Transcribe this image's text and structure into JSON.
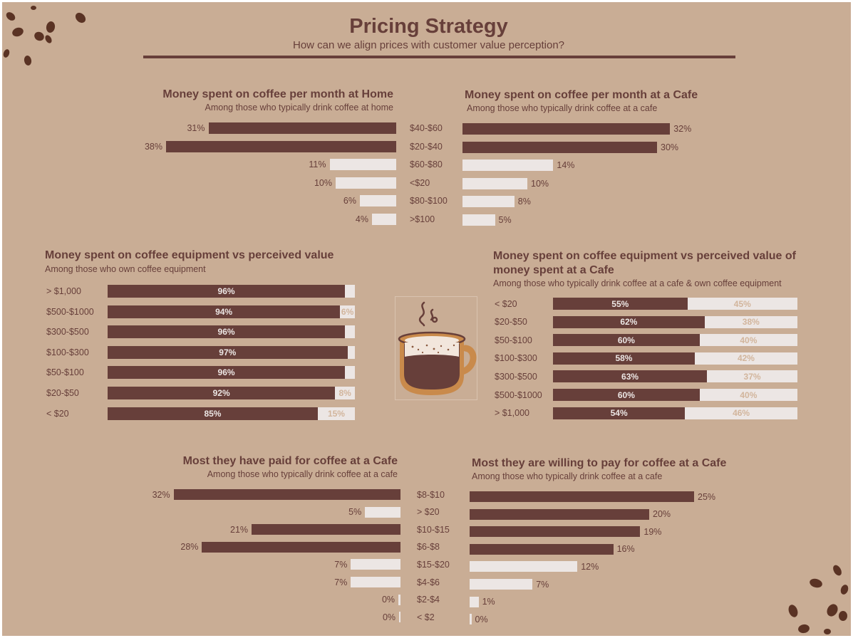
{
  "header": {
    "title": "Pricing Strategy",
    "subtitle": "How can we align prices with customer value perception?"
  },
  "icons": [
    "coffee-bean-icon",
    "coffee-cup-icon"
  ],
  "colors": {
    "background": "#c9ad95",
    "dark": "#673f3a",
    "light": "#ece6e4"
  },
  "chart_data": [
    {
      "id": "home",
      "type": "bar",
      "title": "Money spent on coffee per month at Home",
      "subtitle": "Among those who typically drink coffee at home",
      "categories": [
        "$40-$60",
        "$20-$40",
        "$60-$80",
        "<$20",
        "$80-$100",
        ">$100"
      ],
      "values": [
        31,
        38,
        11,
        10,
        6,
        4
      ],
      "labels": [
        "31%",
        "38%",
        "11%",
        "10%",
        "6%",
        "4%"
      ],
      "highlight": [
        true,
        true,
        false,
        false,
        false,
        false
      ]
    },
    {
      "id": "cafe",
      "type": "bar",
      "title": "Money spent on coffee per month at a Cafe",
      "subtitle": "Among those who typically drink coffee at a cafe",
      "categories": [
        "$40-$60",
        "$20-$40",
        "$60-$80",
        "<$20",
        "$80-$100",
        ">$100"
      ],
      "values": [
        32,
        30,
        14,
        10,
        8,
        5
      ],
      "labels": [
        "32%",
        "30%",
        "14%",
        "10%",
        "8%",
        "5%"
      ],
      "highlight": [
        true,
        true,
        false,
        false,
        false,
        false
      ]
    },
    {
      "id": "equip",
      "type": "bar",
      "stacked": true,
      "title": "Money spent on coffee equipment vs perceived value",
      "subtitle": "Among those who own coffee equipment",
      "categories": [
        "> $1,000",
        "$500-$1000",
        "$300-$500",
        "$100-$300",
        "$50-$100",
        "$20-$50",
        "< $20"
      ],
      "values": [
        96,
        94,
        96,
        97,
        96,
        92,
        85
      ],
      "labels": [
        "96%",
        "94%",
        "96%",
        "97%",
        "96%",
        "92%",
        "85%"
      ],
      "rest_labels": [
        "",
        "6%",
        "",
        "",
        "",
        "8%",
        "15%"
      ]
    },
    {
      "id": "equip_cafe",
      "type": "bar",
      "stacked": true,
      "title": "Money spent on coffee equipment vs perceived value of money spent at a Cafe",
      "title_lines": [
        "Money spent on coffee equipment vs perceived value of",
        "money spent at a Cafe"
      ],
      "subtitle": "Among those who typically drink coffee at a cafe & own coffee equipment",
      "categories": [
        "< $20",
        "$20-$50",
        "$50-$100",
        "$100-$300",
        "$300-$500",
        "$500-$1000",
        "> $1,000"
      ],
      "values": [
        55,
        62,
        60,
        58,
        63,
        60,
        54
      ],
      "labels": [
        "55%",
        "62%",
        "60%",
        "58%",
        "63%",
        "60%",
        "54%"
      ],
      "rest_labels": [
        "45%",
        "38%",
        "40%",
        "42%",
        "37%",
        "40%",
        "46%"
      ]
    },
    {
      "id": "paid",
      "type": "bar",
      "title": "Most they have paid for coffee at a Cafe",
      "subtitle": "Among those who typically drink coffee at a cafe",
      "categories": [
        "$8-$10",
        "> $20",
        "$10-$15",
        "$6-$8",
        "$15-$20",
        "$4-$6",
        "$2-$4",
        "< $2"
      ],
      "values": [
        32,
        5,
        21,
        28,
        7,
        7,
        0.3,
        0.2
      ],
      "labels": [
        "32%",
        "5%",
        "21%",
        "28%",
        "7%",
        "7%",
        "0%",
        "0%"
      ],
      "highlight": [
        true,
        false,
        true,
        true,
        false,
        false,
        false,
        false
      ]
    },
    {
      "id": "willing",
      "type": "bar",
      "title": "Most they are willing to pay for coffee at a Cafe",
      "subtitle": "Among those who typically drink coffee at a cafe",
      "categories": [
        "$8-$10",
        "> $20",
        "$10-$15",
        "$6-$8",
        "$15-$20",
        "$4-$6",
        "$2-$4",
        "< $2"
      ],
      "values": [
        25,
        20,
        19,
        16,
        12,
        7,
        1,
        0.2
      ],
      "labels": [
        "25%",
        "20%",
        "19%",
        "16%",
        "12%",
        "7%",
        "1%",
        "0%"
      ],
      "highlight": [
        true,
        true,
        true,
        true,
        false,
        false,
        false,
        false
      ]
    }
  ]
}
